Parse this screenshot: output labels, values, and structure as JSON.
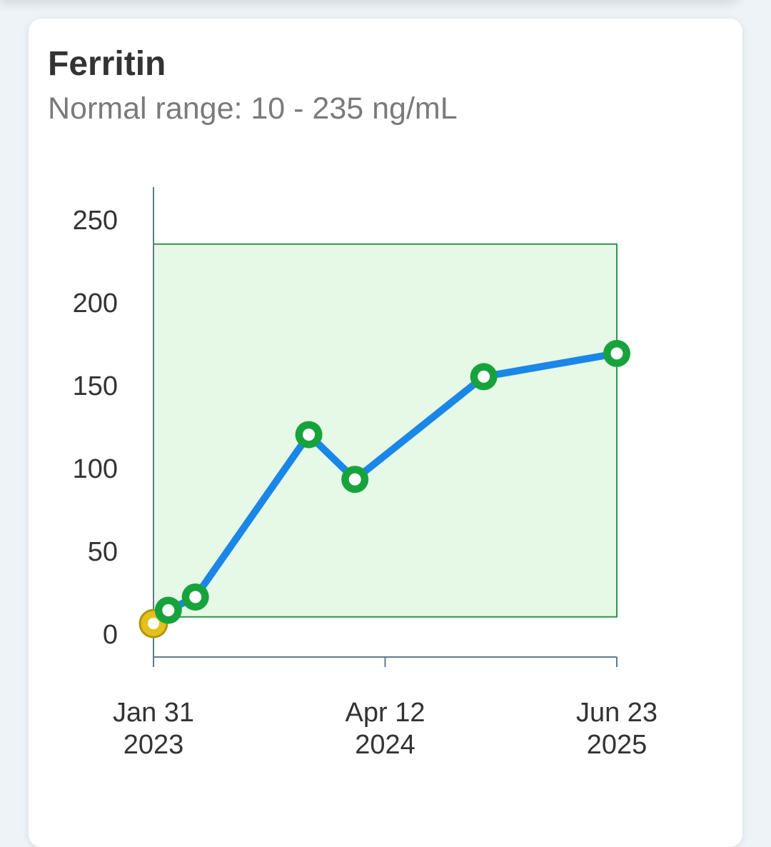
{
  "card": {
    "title": "Ferritin",
    "subtitle": "Normal range: 10 - 235 ng/mL"
  },
  "chart_data": {
    "type": "line",
    "title": "Ferritin",
    "subtitle": "Normal range: 10 - 235 ng/mL",
    "normal_range": [
      10,
      235
    ],
    "ylim": [
      -15,
      270
    ],
    "yticks": [
      0,
      50,
      100,
      150,
      200,
      250
    ],
    "xlim": [
      "2023-01-31",
      "2025-06-23"
    ],
    "xticks": [
      {
        "date": "2023-01-31",
        "line1": "Jan 31",
        "line2": "2023"
      },
      {
        "date": "2024-04-12",
        "line1": "Apr 12",
        "line2": "2024"
      },
      {
        "date": "2025-06-23",
        "line1": "Jun 23",
        "line2": "2025"
      }
    ],
    "grid": false,
    "series": [
      {
        "points": [
          {
            "date": "2023-01-31",
            "value": 6,
            "status": "low"
          },
          {
            "date": "2023-02-28",
            "value": 14,
            "status": "normal"
          },
          {
            "date": "2023-04-20",
            "value": 22,
            "status": "normal"
          },
          {
            "date": "2023-11-20",
            "value": 120,
            "status": "normal"
          },
          {
            "date": "2024-02-15",
            "value": 93,
            "status": "normal"
          },
          {
            "date": "2024-10-15",
            "value": 155,
            "status": "normal"
          },
          {
            "date": "2025-06-23",
            "value": 169,
            "status": "normal"
          }
        ]
      }
    ],
    "colors": {
      "line": "#1a87e8",
      "normal_point": "#17a33c",
      "low_point_fill": "#e3c11a",
      "low_point_border": "#b59411",
      "range_fill": "#e6f8e6",
      "range_border": "#2b9a4a",
      "axis": "#5f7b8a"
    }
  }
}
